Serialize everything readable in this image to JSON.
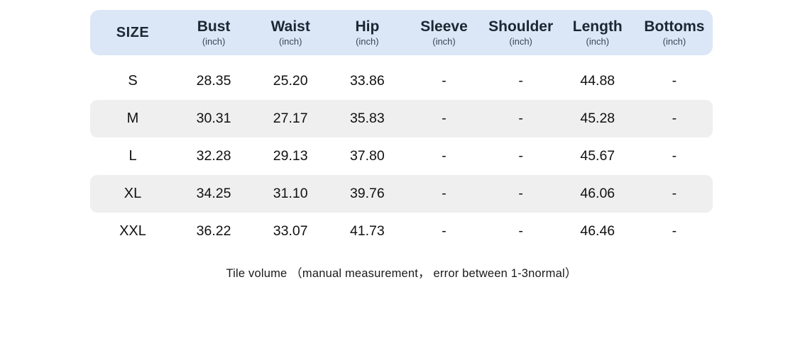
{
  "chart_data": {
    "type": "table",
    "columns": [
      {
        "label": "SIZE",
        "unit": ""
      },
      {
        "label": "Bust",
        "unit": "(inch)"
      },
      {
        "label": "Waist",
        "unit": "(inch)"
      },
      {
        "label": "Hip",
        "unit": "(inch)"
      },
      {
        "label": "Sleeve",
        "unit": "(inch)"
      },
      {
        "label": "Shoulder",
        "unit": "(inch)"
      },
      {
        "label": "Length",
        "unit": "(inch)"
      },
      {
        "label": "Bottoms",
        "unit": "(inch)"
      }
    ],
    "rows": [
      {
        "size": "S",
        "values": [
          "28.35",
          "25.20",
          "33.86",
          "-",
          "-",
          "44.88",
          "-"
        ]
      },
      {
        "size": "M",
        "values": [
          "30.31",
          "27.17",
          "35.83",
          "-",
          "-",
          "45.28",
          "-"
        ]
      },
      {
        "size": "L",
        "values": [
          "32.28",
          "29.13",
          "37.80",
          "-",
          "-",
          "45.67",
          "-"
        ]
      },
      {
        "size": "XL",
        "values": [
          "34.25",
          "31.10",
          "39.76",
          "-",
          "-",
          "46.06",
          "-"
        ]
      },
      {
        "size": "XXL",
        "values": [
          "36.22",
          "33.07",
          "41.73",
          "-",
          "-",
          "46.46",
          "-"
        ]
      }
    ],
    "note": "Tile volume （manual measurement， error between 1-3normal）"
  },
  "colors": {
    "header_bg": "#dbe6f6",
    "stripe_bg": "#efefef",
    "header_text": "#1c2733",
    "unit_text": "#3a4654",
    "body_text": "#111111"
  }
}
